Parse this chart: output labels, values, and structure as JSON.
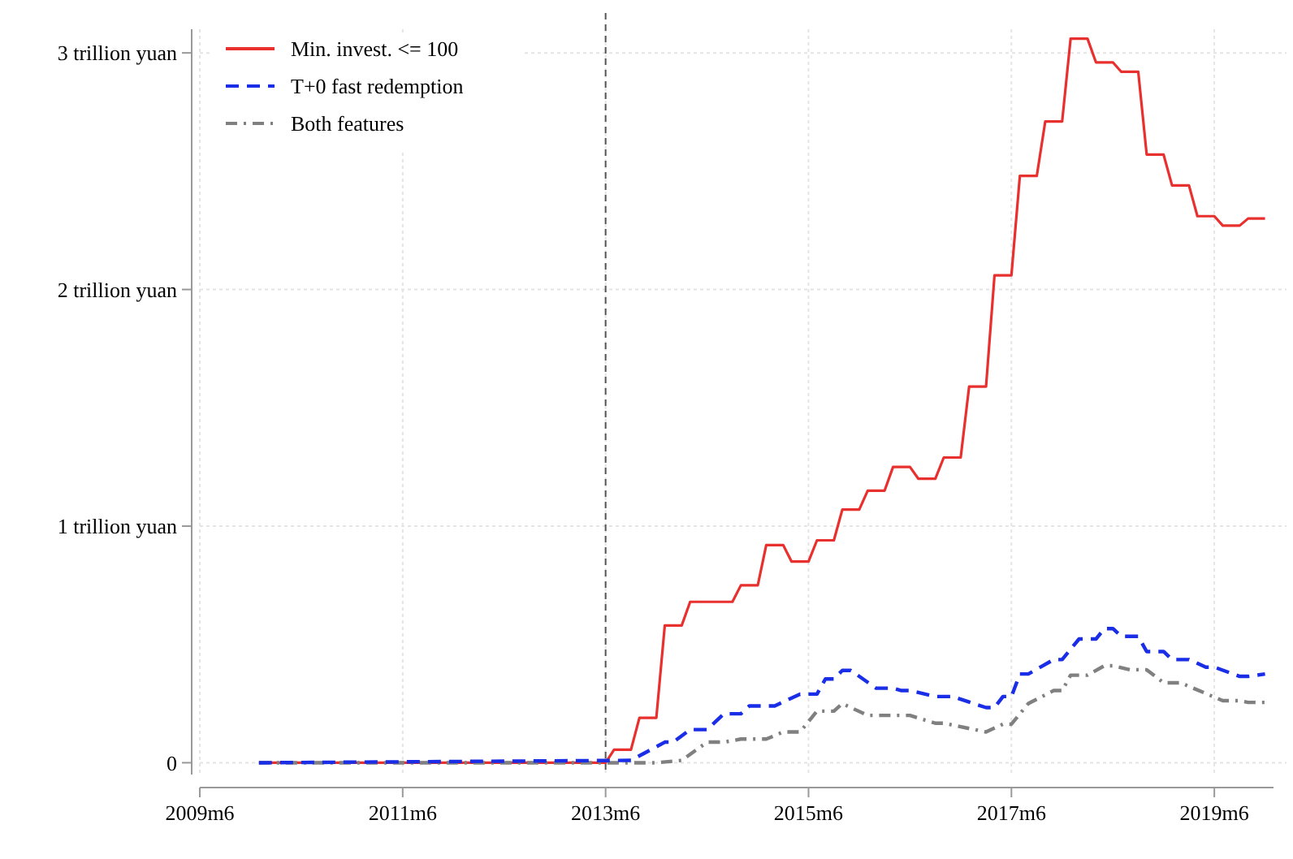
{
  "chart_data": {
    "type": "line",
    "xlim": [
      "2009-06",
      "2020-01"
    ],
    "xticks": [
      {
        "value": "2009-06",
        "label": "2009m6"
      },
      {
        "value": "2011-06",
        "label": "2011m6"
      },
      {
        "value": "2013-06",
        "label": "2013m6"
      },
      {
        "value": "2015-06",
        "label": "2015m6"
      },
      {
        "value": "2017-06",
        "label": "2017m6"
      },
      {
        "value": "2019-06",
        "label": "2019m6"
      }
    ],
    "ylim": [
      -0.05,
      3.1
    ],
    "yticks": [
      {
        "value": 0,
        "label": "0"
      },
      {
        "value": 1,
        "label": "1 trillion yuan"
      },
      {
        "value": 2,
        "label": "2 trillion yuan"
      },
      {
        "value": 3,
        "label": "3 trillion yuan"
      }
    ],
    "grid": true,
    "legend": "top left",
    "ref_lines": [
      {
        "axis": "x",
        "value": "2013-06",
        "label": null,
        "color": "#555555",
        "line_style": "dashed"
      }
    ],
    "series": [
      {
        "name": "Min. invest. <= 100",
        "color": "#e8302e",
        "line_style": "solid",
        "x": [
          "2010-01",
          "2013-06",
          "2013-07",
          "2013-09",
          "2013-10",
          "2013-12",
          "2014-01",
          "2014-03",
          "2014-04",
          "2014-09",
          "2014-10",
          "2014-12",
          "2015-01",
          "2015-03",
          "2015-04",
          "2015-06",
          "2015-07",
          "2015-09",
          "2015-10",
          "2015-12",
          "2016-01",
          "2016-03",
          "2016-04",
          "2016-06",
          "2016-07",
          "2016-09",
          "2016-10",
          "2016-12",
          "2017-01",
          "2017-03",
          "2017-04",
          "2017-06",
          "2017-07",
          "2017-09",
          "2017-10",
          "2017-12",
          "2018-01",
          "2018-03",
          "2018-04",
          "2018-06",
          "2018-07",
          "2018-09",
          "2018-10",
          "2018-12",
          "2019-01",
          "2019-03",
          "2019-04",
          "2019-06",
          "2019-07",
          "2019-09",
          "2019-10",
          "2019-12"
        ],
        "values": [
          0,
          0,
          0.055,
          0.055,
          0.19,
          0.19,
          0.58,
          0.58,
          0.68,
          0.68,
          0.75,
          0.75,
          0.92,
          0.92,
          0.85,
          0.85,
          0.94,
          0.94,
          1.07,
          1.07,
          1.15,
          1.15,
          1.25,
          1.25,
          1.2,
          1.2,
          1.29,
          1.29,
          1.59,
          1.59,
          2.06,
          2.06,
          2.48,
          2.48,
          2.71,
          2.71,
          3.06,
          3.06,
          2.96,
          2.96,
          2.92,
          2.92,
          2.57,
          2.57,
          2.44,
          2.44,
          2.31,
          2.31,
          2.27,
          2.27,
          2.3,
          2.3
        ]
      },
      {
        "name": "T+0 fast redemption",
        "color": "#1a2ee8",
        "line_style": "dashed",
        "x": [
          "2010-01",
          "2013-09",
          "2014-01",
          "2014-02",
          "2014-04",
          "2014-06",
          "2014-08",
          "2014-10",
          "2014-11",
          "2015-02",
          "2015-05",
          "2015-07",
          "2015-08",
          "2015-09",
          "2015-10",
          "2015-11",
          "2016-02",
          "2016-04",
          "2016-05",
          "2016-06",
          "2016-09",
          "2016-11",
          "2017-03",
          "2017-04",
          "2017-05",
          "2017-06",
          "2017-07",
          "2017-08",
          "2017-11",
          "2017-12",
          "2018-02",
          "2018-04",
          "2018-05",
          "2018-06",
          "2018-07",
          "2018-09",
          "2018-10",
          "2018-12",
          "2019-01",
          "2019-03",
          "2019-05",
          "2019-06",
          "2019-09",
          "2019-10",
          "2019-12"
        ],
        "values": [
          0,
          0.01,
          0.087,
          0.087,
          0.14,
          0.14,
          0.207,
          0.207,
          0.24,
          0.24,
          0.29,
          0.29,
          0.354,
          0.354,
          0.39,
          0.39,
          0.315,
          0.315,
          0.305,
          0.305,
          0.28,
          0.28,
          0.233,
          0.233,
          0.28,
          0.28,
          0.375,
          0.375,
          0.436,
          0.436,
          0.523,
          0.523,
          0.567,
          0.567,
          0.534,
          0.534,
          0.47,
          0.47,
          0.436,
          0.436,
          0.404,
          0.404,
          0.365,
          0.365,
          0.375
        ]
      },
      {
        "name": "Both features",
        "color": "#808080",
        "line_style": "dotted",
        "x": [
          "2010-01",
          "2013-12",
          "2014-03",
          "2014-06",
          "2014-08",
          "2014-10",
          "2015-01",
          "2015-03",
          "2015-05",
          "2015-07",
          "2015-09",
          "2015-10",
          "2016-01",
          "2016-06",
          "2016-09",
          "2016-10",
          "2017-03",
          "2017-05",
          "2017-06",
          "2017-08",
          "2017-11",
          "2017-12",
          "2018-01",
          "2018-03",
          "2018-05",
          "2018-06",
          "2018-08",
          "2018-10",
          "2018-12",
          "2019-02",
          "2019-07",
          "2019-09",
          "2019-10",
          "2019-12"
        ],
        "values": [
          0,
          0,
          0.01,
          0.087,
          0.087,
          0.1,
          0.1,
          0.13,
          0.13,
          0.218,
          0.218,
          0.25,
          0.2,
          0.2,
          0.167,
          0.167,
          0.13,
          0.163,
          0.163,
          0.25,
          0.305,
          0.305,
          0.37,
          0.37,
          0.41,
          0.41,
          0.393,
          0.393,
          0.338,
          0.338,
          0.262,
          0.262,
          0.255,
          0.255
        ]
      }
    ]
  }
}
